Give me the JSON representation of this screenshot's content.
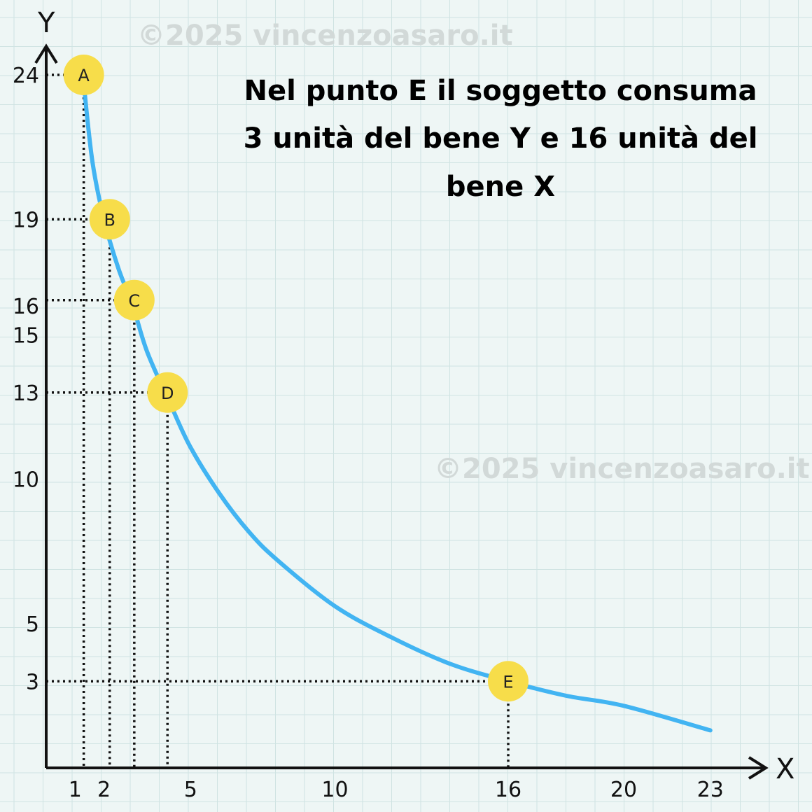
{
  "colors": {
    "background": "#eef6f5",
    "grid": "#cfe3e2",
    "axis": "#111111",
    "curve": "#42b4f2",
    "point_fill": "#f7dd4a",
    "guides": "#111111"
  },
  "watermarks": [
    "©2025 vincenzoasaro.it",
    "©2025 vincenzoasaro.it"
  ],
  "chart_data": {
    "type": "line",
    "title_lines": [
      "Nel punto E il soggetto consuma",
      "3 unità del bene Y e 16 unità del",
      "bene X"
    ],
    "xlabel": "X",
    "ylabel": "Y",
    "xlim": [
      0,
      25
    ],
    "ylim": [
      0,
      25
    ],
    "x_ticks": [
      1,
      2,
      5,
      10,
      16,
      20,
      23
    ],
    "y_ticks": [
      3,
      5,
      10,
      13,
      15,
      16,
      19,
      24
    ],
    "curve": {
      "x": [
        1.3,
        1.6,
        2,
        2.5,
        3,
        3.5,
        4.3,
        5,
        6,
        7,
        8,
        10,
        12,
        14,
        16,
        18,
        20,
        23
      ],
      "y": [
        23.7,
        21,
        19,
        17.3,
        16,
        14.4,
        12.6,
        11.1,
        9.5,
        8.2,
        7.2,
        5.6,
        4.5,
        3.6,
        3,
        2.5,
        2.15,
        1.3
      ]
    },
    "points": [
      {
        "label": "A",
        "x": 1.3,
        "y": 24
      },
      {
        "label": "B",
        "x": 2.2,
        "y": 19
      },
      {
        "label": "C",
        "x": 3.05,
        "y": 16.2
      },
      {
        "label": "D",
        "x": 4.2,
        "y": 13
      },
      {
        "label": "E",
        "x": 16,
        "y": 3
      }
    ],
    "grid": true
  }
}
